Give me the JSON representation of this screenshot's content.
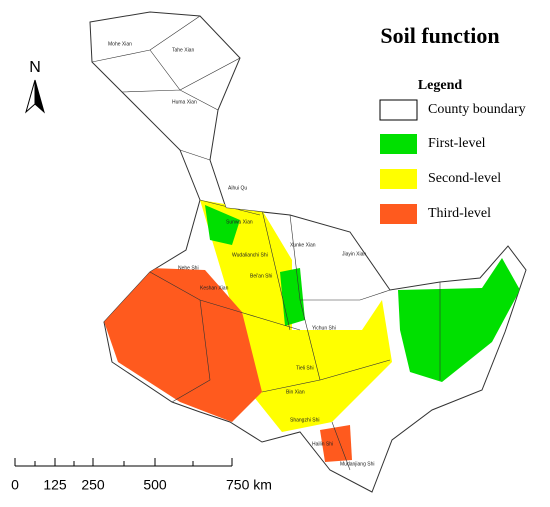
{
  "title": "Soil function",
  "north": "N",
  "legend": {
    "title": "Legend",
    "items": [
      "County boundary",
      "First-level",
      "Second-level",
      "Third-level"
    ]
  },
  "scale_bar": [
    "0",
    "125",
    "250",
    "500",
    "750 km"
  ],
  "counties": [
    "Mohe Xian",
    "Tahe Xian",
    "Huma Xian",
    "Aihui Qu",
    "Sunwu Xian",
    "Xunke Xian",
    "Jiayin Xian",
    "Yichun Shi",
    "Tieli Shi",
    "Nehe Shi",
    "Bin Xian",
    "Shangzhi Shi",
    "Hailin Shi",
    "Mudanjiang Shi",
    "Wudalianchi Shi",
    "Bei'an Shi",
    "Keshan Xian"
  ]
}
